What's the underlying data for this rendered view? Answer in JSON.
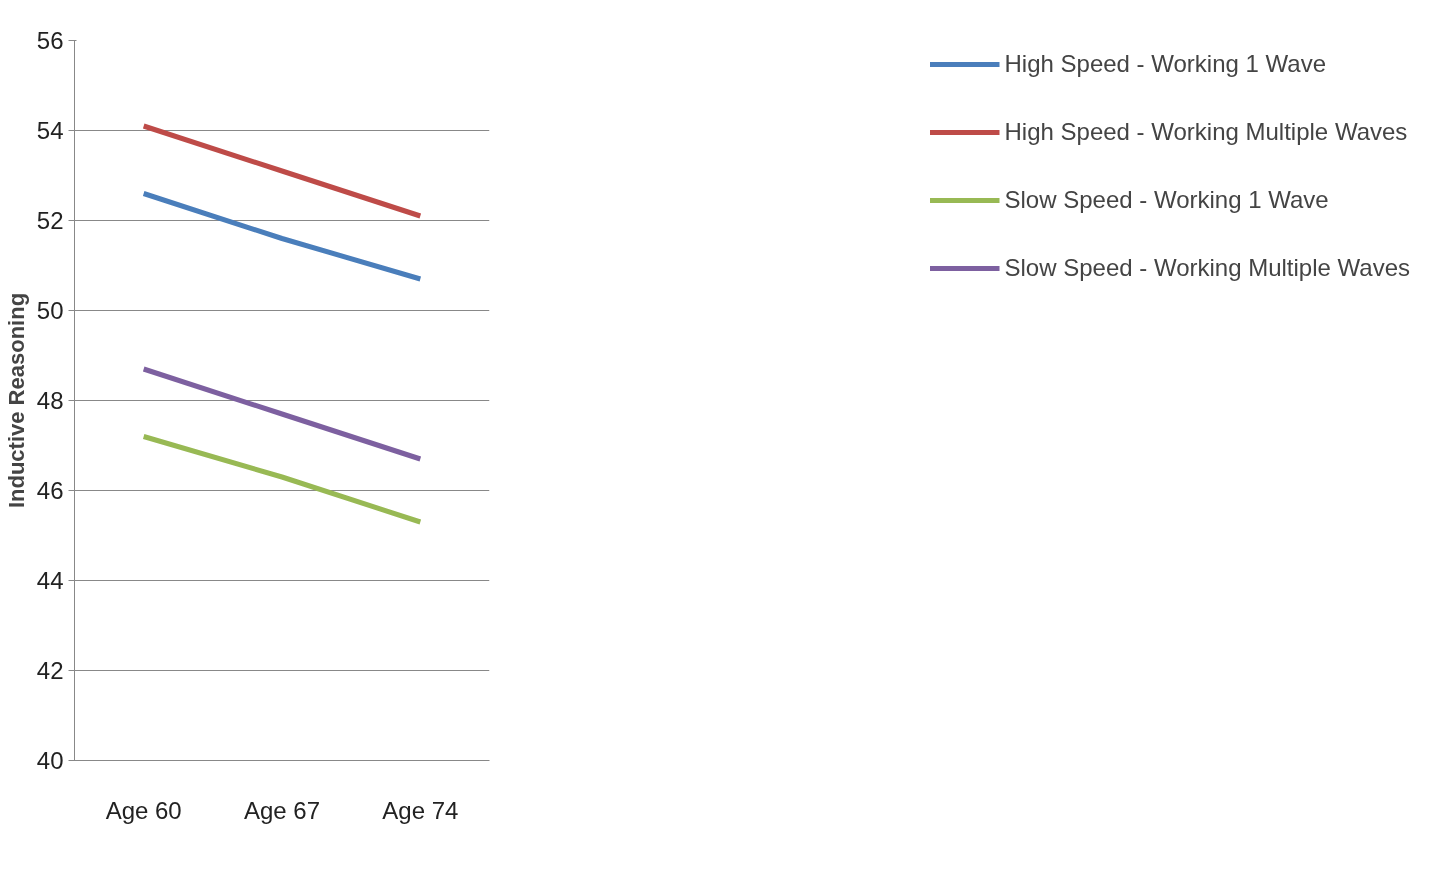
{
  "chart_data": {
    "type": "line",
    "ylabel": "Inductive Reasoning",
    "categories": [
      "Age 60",
      "Age 67",
      "Age 74"
    ],
    "ylim": [
      40,
      56
    ],
    "yticks": [
      40,
      42,
      44,
      46,
      48,
      50,
      52,
      54,
      56
    ],
    "grid": "y",
    "legend": "right",
    "marker": "none",
    "line_style": "solid",
    "series": [
      {
        "name": "High Speed - Working 1 Wave",
        "color": "#4a7ebb",
        "values": [
          52.6,
          51.6,
          50.7
        ]
      },
      {
        "name": "High Speed - Working Multiple Waves",
        "color": "#be4b48",
        "values": [
          54.1,
          53.1,
          52.1
        ]
      },
      {
        "name": "Slow Speed - Working 1 Wave",
        "color": "#98b954",
        "values": [
          47.2,
          46.3,
          45.3
        ]
      },
      {
        "name": "Slow Speed - Working Multiple Waves",
        "color": "#7d60a0",
        "values": [
          48.7,
          47.7,
          46.7
        ]
      }
    ]
  }
}
